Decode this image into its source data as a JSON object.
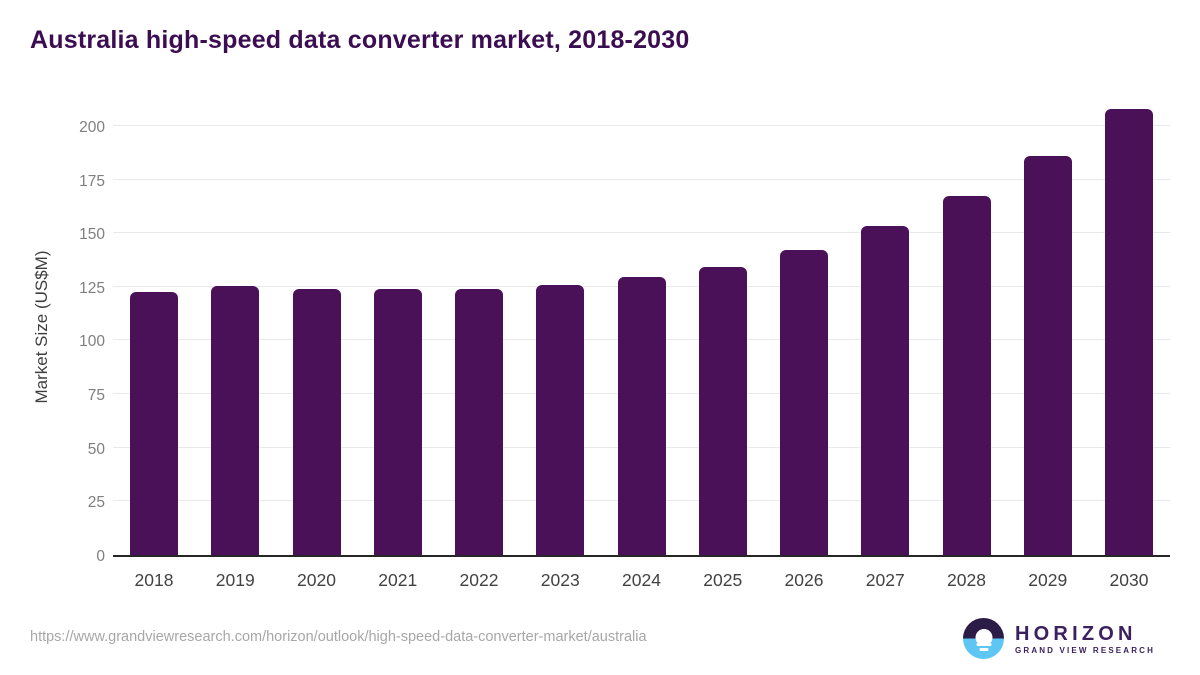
{
  "header": {
    "title": "Australia high-speed data converter market, 2018-2030"
  },
  "footer": {
    "source_url": "https://www.grandviewresearch.com/horizon/outlook/high-speed-data-converter-market/australia",
    "logo": {
      "icon": "horizon-sun-over-water-icon",
      "name": "HORIZON",
      "subtitle": "GRAND VIEW RESEARCH"
    }
  },
  "colors": {
    "bar": "#4a1159",
    "title": "#3b0e52",
    "axis_line": "#262626",
    "gridline": "#e9e9e9",
    "y_tick_text": "#7f7f7f",
    "x_tick_text": "#424242",
    "url_text": "#a7a7a7",
    "logo_purple": "#2b1b47",
    "logo_blue": "#5ec6f2",
    "logo_text": "#3b2160"
  },
  "chart_data": {
    "type": "bar",
    "title": "Australia high-speed data converter market, 2018-2030",
    "categories": [
      "2018",
      "2019",
      "2020",
      "2021",
      "2022",
      "2023",
      "2024",
      "2025",
      "2026",
      "2027",
      "2028",
      "2029",
      "2030"
    ],
    "values": [
      122.4,
      125.3,
      124.2,
      124.2,
      124.2,
      126.0,
      129.5,
      134.3,
      142.1,
      153.4,
      167.5,
      185.8,
      207.8
    ],
    "xlabel": "",
    "ylabel": "Market Size (US$M)",
    "yticks": [
      0,
      25,
      50,
      75,
      100,
      125,
      150,
      175,
      200
    ],
    "ylim": [
      0,
      214.4
    ],
    "grid": true,
    "legend": false,
    "bar_color": "#4a1159"
  }
}
